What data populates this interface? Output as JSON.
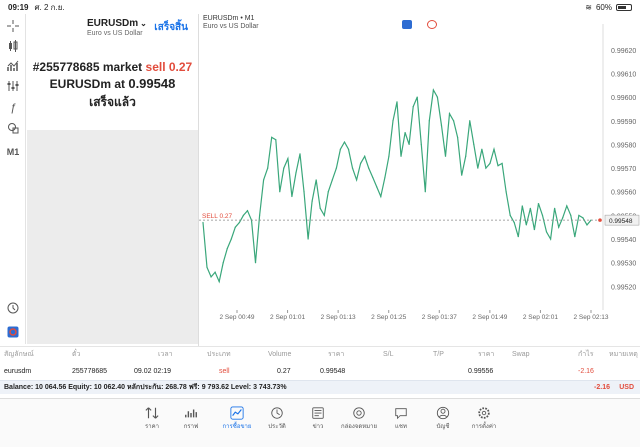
{
  "status": {
    "time": "09:19",
    "date": "ศ. 2 ก.ย.",
    "battery": "60%",
    "battery_level": 0.6
  },
  "toolbar": {
    "timeframe": "M1",
    "tools": [
      "crosshair-icon",
      "candles-icon",
      "indicators-icon",
      "settings-sliders-icon",
      "function-icon",
      "shapes-icon"
    ]
  },
  "order": {
    "symbol": "EURUSDm",
    "symbol_desc": "Euro vs US Dollar",
    "done": "เสร็จสิ้น",
    "line1_prefix": "#255778685 market ",
    "line1_action": "sell 0.27",
    "line2_prefix": "EURUSDm at ",
    "line2_price": "0.99548",
    "line3": "เสร็จแล้ว"
  },
  "chart": {
    "title": "EURUSDm • M1",
    "subtitle": "Euro vs US Dollar",
    "sell_label": "SELL 0.27",
    "current_price": "0.99548"
  },
  "chart_data": {
    "type": "line",
    "title": "EURUSDm • M1",
    "ylim": [
      0.9951,
      0.99625
    ],
    "y_ticks": [
      "0.99620",
      "0.99610",
      "0.99600",
      "0.99590",
      "0.99580",
      "0.99570",
      "0.99560",
      "0.99550",
      "0.99540",
      "0.99530",
      "0.99520"
    ],
    "x_labels": [
      "2 Sep 00:49",
      "2 Sep 01:01",
      "2 Sep 01:13",
      "2 Sep 01:25",
      "2 Sep 01:37",
      "2 Sep 01:49",
      "2 Sep 02:01",
      "2 Sep 02:13"
    ],
    "series": [
      {
        "values": [
          0.99547,
          0.99528,
          0.99524,
          0.99526,
          0.99522,
          0.9953,
          0.99536,
          0.9954,
          0.99545,
          0.99547,
          0.9955,
          0.99552,
          0.99548,
          0.9953,
          0.9955,
          0.99565,
          0.9957,
          0.99583,
          0.99582,
          0.9956,
          0.9957,
          0.99574,
          0.99558,
          0.99568,
          0.99576,
          0.9956,
          0.9954,
          0.99556,
          0.99565,
          0.99553,
          0.9955,
          0.9956,
          0.99565,
          0.9957,
          0.99578,
          0.99581,
          0.99578,
          0.9957,
          0.99565,
          0.99572,
          0.99575,
          0.9957,
          0.99566,
          0.99562,
          0.99558,
          0.99566,
          0.99575,
          0.9959,
          0.99598,
          0.99575,
          0.99585,
          0.9958,
          0.99596,
          0.996,
          0.9958,
          0.9956,
          0.9959,
          0.99603,
          0.996,
          0.99588,
          0.99575,
          0.99593,
          0.9959,
          0.99583,
          0.99567,
          0.99575,
          0.9959,
          0.9958,
          0.9957,
          0.99578,
          0.9957,
          0.99572,
          0.99578,
          0.99571,
          0.99572,
          0.9956,
          0.9955,
          0.99547,
          0.99541,
          0.99554,
          0.99546,
          0.99553,
          0.99544,
          0.99555,
          0.9955,
          0.99543,
          0.9954,
          0.99553,
          0.99545,
          0.99549,
          0.99554,
          0.9955,
          0.99541,
          0.9955,
          0.99549,
          0.99546,
          0.99548
        ]
      }
    ]
  },
  "table": {
    "headers": [
      "สัญลักษณ์",
      "ตั๋ว",
      "เวลา",
      "ประเภท",
      "Volume",
      "ราคา",
      "S/L",
      "T/P",
      "ราคา",
      "Swap",
      "กำไร",
      "หมายเหตุ"
    ],
    "row": {
      "symbol": "eurusdm",
      "ticket": "255778685",
      "time": "09.02 02:19",
      "type": "sell",
      "volume": "0.27",
      "price_open": "0.99548",
      "price_current": "0.99556",
      "profit": "-2.16"
    }
  },
  "balance": {
    "text": "Balance: 10 064.56  Equity: 10 062.40  หลักประกัน: 268.78  ฟรี: 9 793.62  Level: 3 743.73%",
    "profit": "-2.16",
    "currency": "USD"
  },
  "tabs": [
    {
      "label": "ราคา",
      "icon": "quotes-icon"
    },
    {
      "label": "กราฟ",
      "icon": "chart-icon"
    },
    {
      "label": "การซื้อขาย",
      "icon": "trade-icon",
      "active": true
    },
    {
      "label": "ประวัติ",
      "icon": "history-icon"
    },
    {
      "label": "ข่าว",
      "icon": "news-icon"
    },
    {
      "label": "กล่องจดหมาย",
      "icon": "mailbox-icon"
    },
    {
      "label": "แชท",
      "icon": "chat-icon"
    },
    {
      "label": "บัญชี",
      "icon": "account-icon"
    },
    {
      "label": "การตั้งค่า",
      "icon": "settings-icon"
    }
  ],
  "colors": {
    "accent": "#1a73e8",
    "line": "#3aa77b",
    "sell": "#e24c3c"
  }
}
